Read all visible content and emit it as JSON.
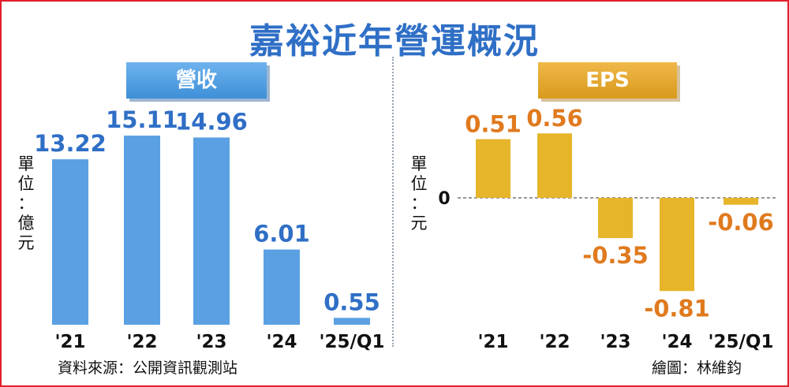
{
  "title": "嘉裕近年營運概況",
  "source": "資料來源：公開資訊觀測站",
  "credit": "繪圖：林維鈞",
  "colors": {
    "revenue_bar": "#5aa0e2",
    "revenue_label": "#2f6fc6",
    "eps_bar": "#e6b52a",
    "eps_label": "#e07a1e"
  },
  "chart_data": [
    {
      "type": "bar",
      "title": "營收",
      "ylabel": "單位：億元",
      "unit_chars": [
        "單",
        "位",
        "：",
        "億",
        "元"
      ],
      "categories": [
        "'21",
        "'22",
        "'23",
        "'24",
        "'25/Q1"
      ],
      "values": [
        13.22,
        15.11,
        14.96,
        6.01,
        0.55
      ],
      "value_labels": [
        "13.22",
        "15.11",
        "14.96",
        "6.01",
        "0.55"
      ],
      "ylim": [
        0,
        16.5
      ],
      "grid": false
    },
    {
      "type": "bar",
      "title": "EPS",
      "ylabel": "單位：元",
      "unit_chars": [
        "單",
        "位",
        "：",
        "元"
      ],
      "zero_label": "0",
      "categories": [
        "'21",
        "'22",
        "'23",
        "'24",
        "'25/Q1"
      ],
      "values": [
        0.51,
        0.56,
        -0.35,
        -0.81,
        -0.06
      ],
      "value_labels": [
        "0.51",
        "0.56",
        "-0.35",
        "-0.81",
        "-0.06"
      ],
      "ylim": [
        -0.9,
        0.9
      ],
      "grid": false
    }
  ]
}
